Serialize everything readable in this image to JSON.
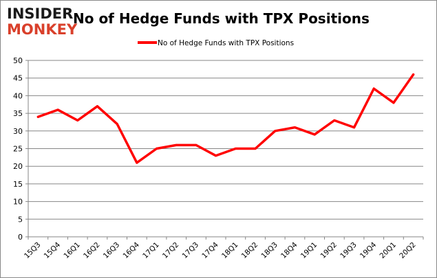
{
  "logo": {
    "line1": "INSIDER",
    "line2": "MONKEY"
  },
  "colors": {
    "series": "#ff0000",
    "grid": "#868686",
    "logo_dark": "#1a1a1a",
    "logo_red": "#d9402b"
  },
  "chart_data": {
    "type": "line",
    "title": "No of Hedge Funds with TPX Positions",
    "xlabel": "",
    "ylabel": "",
    "categories": [
      "15Q3",
      "15Q4",
      "16Q1",
      "16Q2",
      "16Q3",
      "16Q4",
      "17Q1",
      "17Q2",
      "17Q3",
      "17Q4",
      "18Q1",
      "18Q2",
      "18Q3",
      "18Q4",
      "19Q1",
      "19Q2",
      "19Q3",
      "19Q4",
      "20Q1",
      "20Q2"
    ],
    "series": [
      {
        "name": "No of Hedge Funds with TPX Positions",
        "values": [
          34,
          36,
          33,
          37,
          32,
          21,
          25,
          26,
          26,
          23,
          25,
          25,
          30,
          31,
          29,
          33,
          31,
          42,
          38,
          46
        ]
      }
    ],
    "ylim": [
      0,
      50
    ],
    "yticks": [
      0,
      5,
      10,
      15,
      20,
      25,
      30,
      35,
      40,
      45,
      50
    ],
    "grid": true,
    "legend": "top-center"
  }
}
